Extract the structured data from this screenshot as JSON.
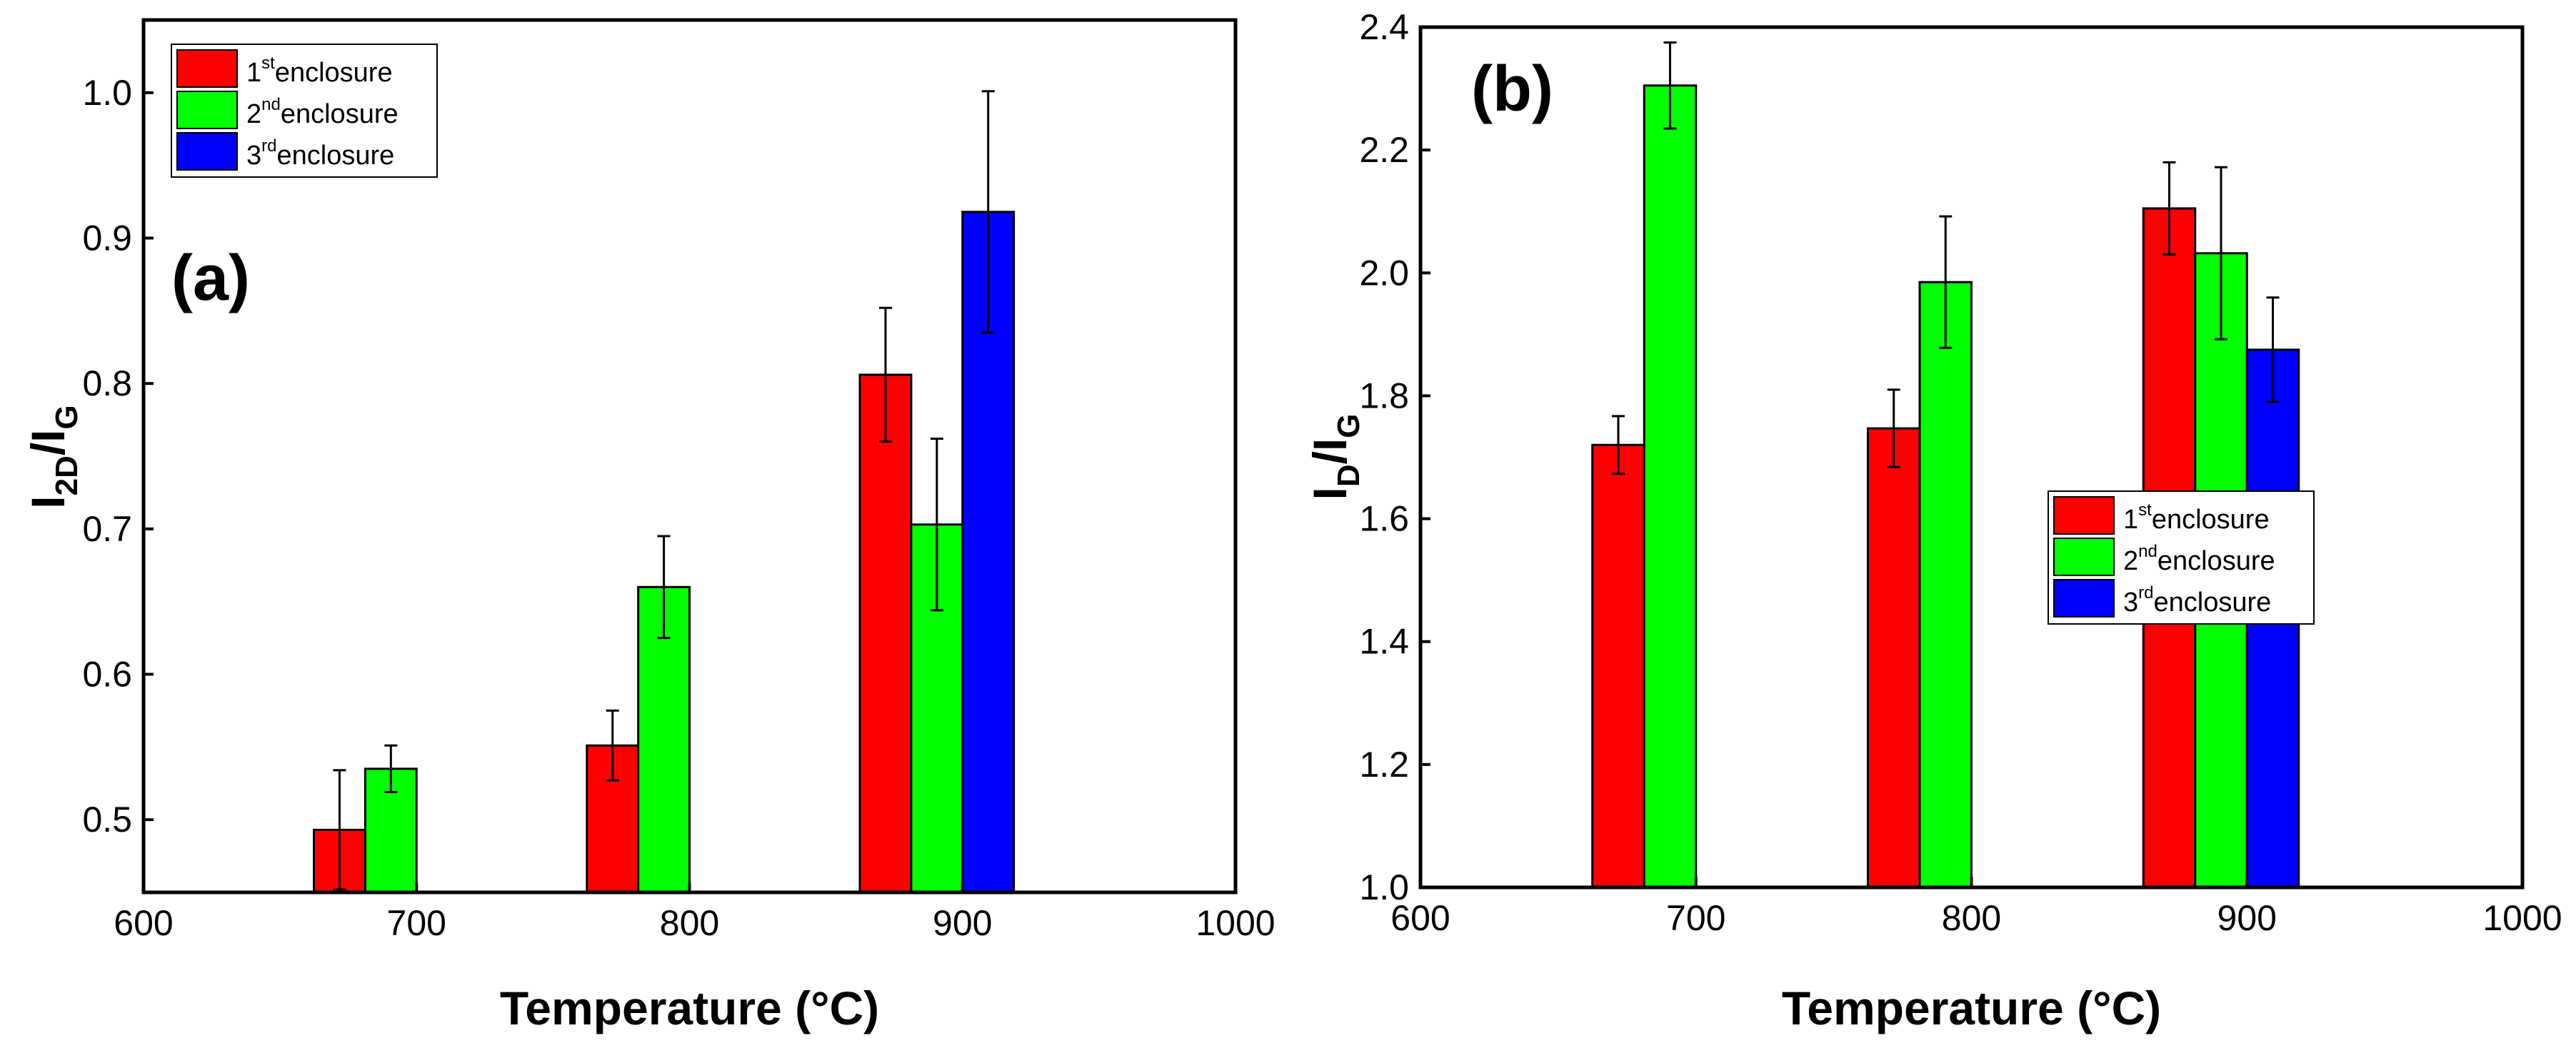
{
  "chart_data": [
    {
      "type": "bar",
      "panel_label": "(a)",
      "xlabel": "Temperature (°C)",
      "ylabel": {
        "main": "I",
        "sub1": "2D",
        "slash": "/I",
        "sub2": "G"
      },
      "xlim": [
        600,
        1000
      ],
      "ylim": [
        0.45,
        1.05
      ],
      "xticks": [
        "600",
        "700",
        "800",
        "900",
        "1000"
      ],
      "yticks": [
        "0.5",
        "0.6",
        "0.7",
        "0.8",
        "0.9",
        "1.0"
      ],
      "categories": [
        700,
        800,
        900
      ],
      "legend_position": "top-left",
      "series": [
        {
          "name": "1st enclosure",
          "color": "#ff0000",
          "values": [
            0.493,
            0.551,
            0.806
          ],
          "errors": [
            0.041,
            0.024,
            0.046
          ]
        },
        {
          "name": "2nd enclosure",
          "color": "#00ff00",
          "values": [
            0.535,
            0.66,
            0.703
          ],
          "errors": [
            0.016,
            0.035,
            0.059
          ]
        },
        {
          "name": "3rd enclosure",
          "color": "#0000ff",
          "values": [
            null,
            null,
            0.918
          ],
          "errors": [
            null,
            null,
            0.083
          ]
        }
      ]
    },
    {
      "type": "bar",
      "panel_label": "(b)",
      "xlabel": "Temperature (°C)",
      "ylabel": {
        "main": "I",
        "sub1": "D",
        "slash": "/I",
        "sub2": "G"
      },
      "xlim": [
        600,
        1000
      ],
      "ylim": [
        1.0,
        2.4
      ],
      "xticks": [
        "600",
        "700",
        "800",
        "900",
        "1000"
      ],
      "yticks": [
        "1.0",
        "1.2",
        "1.4",
        "1.6",
        "1.8",
        "2.0",
        "2.2",
        "2.4"
      ],
      "categories": [
        700,
        800,
        900
      ],
      "legend_position": "center-right",
      "series": [
        {
          "name": "1st enclosure",
          "color": "#ff0000",
          "values": [
            1.72,
            1.747,
            2.105
          ],
          "errors": [
            0.047,
            0.063,
            0.075
          ]
        },
        {
          "name": "2nd enclosure",
          "color": "#00ff00",
          "values": [
            2.305,
            1.985,
            2.032
          ],
          "errors": [
            0.07,
            0.107,
            0.14
          ]
        },
        {
          "name": "3rd enclosure",
          "color": "#0000ff",
          "values": [
            null,
            null,
            1.875
          ],
          "errors": [
            null,
            null,
            0.085
          ]
        }
      ]
    }
  ],
  "legend_labels": [
    {
      "num": "1",
      "sup": "st",
      "text": "enclosure"
    },
    {
      "num": "2",
      "sup": "nd",
      "text": "enclosure"
    },
    {
      "num": "3",
      "sup": "rd",
      "text": "enclosure"
    }
  ]
}
